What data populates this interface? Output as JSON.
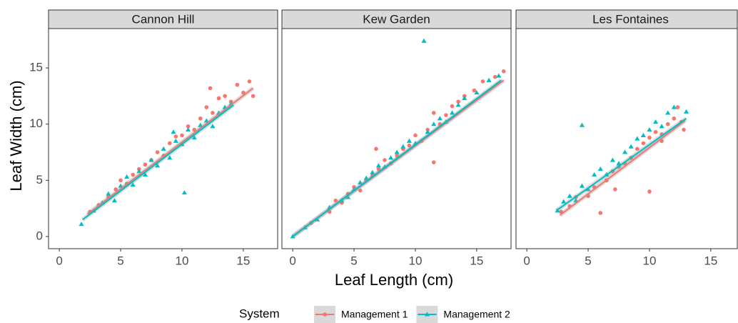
{
  "chart_data": {
    "type": "scatter",
    "xlabel": "Leaf Length (cm)",
    "ylabel": "Leaf Width (cm)",
    "legend_title": "System",
    "xlim": [
      -0.88,
      17.8
    ],
    "ylim": [
      -1.08,
      18.5
    ],
    "xticks": [
      0,
      5,
      10,
      15
    ],
    "yticks": [
      0,
      5,
      10,
      15
    ],
    "series": [
      {
        "name": "Management 1",
        "color": "#F8766D",
        "marker": "circle"
      },
      {
        "name": "Management 2",
        "color": "#00BFC4",
        "marker": "triangle"
      }
    ],
    "panels": [
      {
        "title": "Cannon Hill",
        "series": [
          {
            "x": [
              2.5,
              3.2,
              4,
              4.6,
              5,
              5.5,
              6,
              6.5,
              7,
              7.5,
              8,
              8.5,
              9,
              9.5,
              10,
              10.5,
              11,
              11.5,
              12,
              12.5,
              13,
              13.5,
              14,
              14.5,
              15,
              15.5,
              15.8,
              12.3
            ],
            "y": [
              2.2,
              2.8,
              3.5,
              4.2,
              5,
              4.7,
              5.5,
              6,
              6.4,
              6.8,
              7.5,
              7.2,
              8.3,
              8.9,
              9,
              9.8,
              9.5,
              10.5,
              11.5,
              11,
              12.3,
              12.5,
              12,
              13.5,
              12.8,
              13.8,
              12.5,
              13.2
            ],
            "fit_x": [
              2.3,
              15.8
            ],
            "fit_y": [
              2,
              13.2
            ]
          },
          {
            "x": [
              1.8,
              2.8,
              3.5,
              4,
              4.5,
              5,
              5.5,
              6,
              6.5,
              7,
              7.5,
              8,
              8.5,
              9,
              9.5,
              10,
              10.2,
              10.5,
              11,
              11.5,
              12,
              12.5,
              13,
              13.5,
              14,
              9.3
            ],
            "y": [
              1.1,
              2.3,
              3,
              3.8,
              3.2,
              4.5,
              5.3,
              4.6,
              5.8,
              5.5,
              6.8,
              6.3,
              7.8,
              7,
              8.5,
              8.2,
              3.9,
              9.5,
              8.8,
              9.9,
              10.3,
              9.8,
              11,
              11.5,
              11.8,
              9.3
            ],
            "fit_x": [
              1.9,
              14.2
            ],
            "fit_y": [
              1.5,
              11.7
            ]
          }
        ]
      },
      {
        "title": "Kew Garden",
        "series": [
          {
            "x": [
              1.5,
              3,
              3.5,
              4,
              4.5,
              5,
              5.5,
              6,
              6.5,
              7,
              7.5,
              8,
              8.5,
              9,
              9.5,
              10,
              10.5,
              11,
              11.5,
              12,
              12.5,
              13,
              13.5,
              14,
              14.8,
              15.5,
              16.5,
              17.2,
              6.8,
              11.5
            ],
            "y": [
              1.2,
              2.2,
              3.2,
              3,
              3.8,
              4.4,
              4.1,
              5,
              5.4,
              6,
              6.8,
              6.5,
              7.2,
              7.8,
              8.1,
              9,
              8.5,
              9.5,
              11,
              10,
              10.8,
              11.6,
              12,
              12.5,
              13,
              13.8,
              14.2,
              14.7,
              7.8,
              6.6
            ],
            "fit_x": [
              0.1,
              17.2
            ],
            "fit_y": [
              0.1,
              13.9
            ]
          },
          {
            "x": [
              0,
              1,
              2,
              3,
              4,
              4.5,
              5,
              5.5,
              6,
              6.5,
              7,
              7.5,
              8,
              8.5,
              9,
              9.5,
              10,
              10.7,
              11,
              11.5,
              12,
              12.5,
              13,
              13.5,
              14,
              15,
              16,
              16.8
            ],
            "y": [
              0,
              0.8,
              1.5,
              2.6,
              3.2,
              3.5,
              4.2,
              4.8,
              5.2,
              5.7,
              6.3,
              6.2,
              7,
              7.5,
              8,
              8.5,
              8.3,
              17.4,
              9.3,
              10,
              10.5,
              10.2,
              11,
              11.7,
              12.3,
              12.8,
              13.9,
              14.3
            ],
            "fit_x": [
              0,
              17
            ],
            "fit_y": [
              0,
              13.9
            ]
          }
        ]
      },
      {
        "title": "Les Fontaines",
        "series": [
          {
            "x": [
              2.8,
              3.5,
              4,
              5,
              5.5,
              6,
              6.5,
              7,
              7.2,
              7.5,
              8,
              8.5,
              9,
              9.5,
              10,
              10,
              10.5,
              11,
              11.5,
              12,
              12.3,
              12.6,
              12.8,
              11
            ],
            "y": [
              2.2,
              2.7,
              3.5,
              3.6,
              4.4,
              2.1,
              5,
              5.8,
              4.2,
              6.2,
              6.5,
              7,
              7.8,
              8.3,
              4,
              8.8,
              9.3,
              9.1,
              10,
              10.5,
              11.5,
              10.2,
              9.5,
              8.5
            ],
            "fit_x": [
              2.7,
              12.9
            ],
            "fit_y": [
              1.9,
              10.3
            ]
          },
          {
            "x": [
              2.5,
              3,
              3.5,
              4,
              4.5,
              4.5,
              5,
              5.5,
              6,
              6.5,
              7,
              7.5,
              8,
              8.5,
              9,
              9.5,
              10,
              10.5,
              11,
              12,
              13,
              11.5
            ],
            "y": [
              2.3,
              3.1,
              3.6,
              3.2,
              4.5,
              9.9,
              4.2,
              5.5,
              6,
              5.5,
              6.8,
              6.5,
              7.5,
              8,
              8.7,
              9,
              9.5,
              10.2,
              9.8,
              11.5,
              11.1,
              11
            ],
            "fit_x": [
              2.4,
              13
            ],
            "fit_y": [
              2.3,
              10.5
            ]
          }
        ]
      }
    ]
  }
}
